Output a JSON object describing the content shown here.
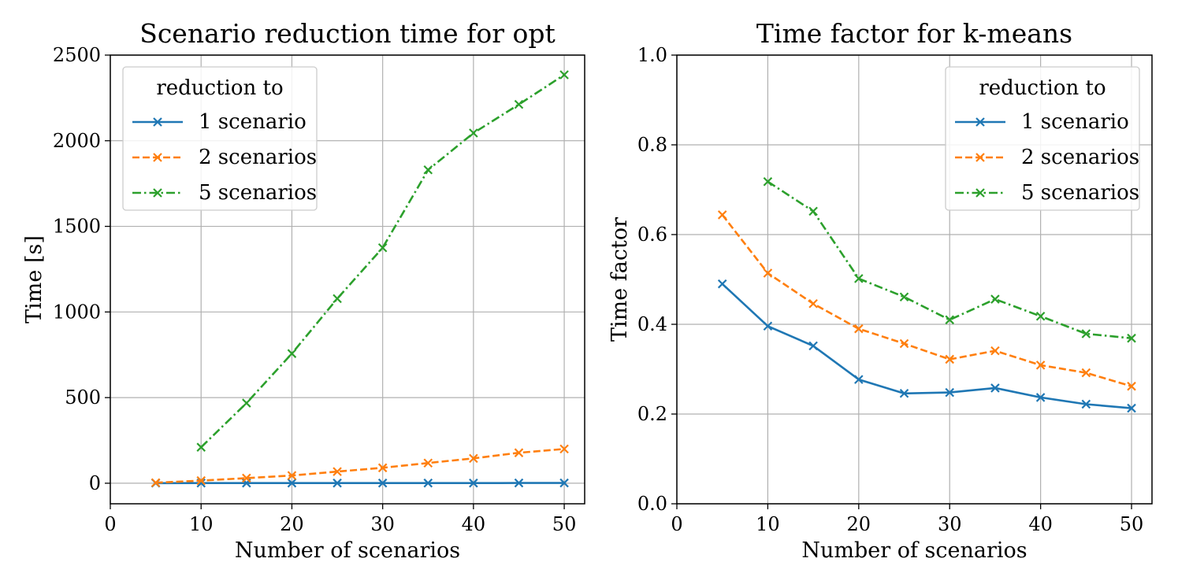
{
  "chart_data": [
    {
      "type": "line",
      "title": "Scenario reduction time for opt",
      "xlabel": "Number of scenarios",
      "ylabel": "Time [s]",
      "xlim": [
        0,
        52.25
      ],
      "ylim": [
        -120,
        2500
      ],
      "xticks": [
        0,
        10,
        20,
        30,
        40,
        50
      ],
      "yticks": [
        0,
        500,
        1000,
        1500,
        2000,
        2500
      ],
      "grid": true,
      "legend": {
        "title": "reduction to",
        "position": "top-left"
      },
      "series": [
        {
          "name": "1 scenario",
          "color": "#1f77b4",
          "linestyle": "solid",
          "marker": "x",
          "x": [
            5,
            10,
            15,
            20,
            25,
            30,
            35,
            40,
            45,
            50
          ],
          "y": [
            0.5,
            1,
            1,
            1,
            1,
            1,
            1,
            1,
            1.5,
            1.5
          ]
        },
        {
          "name": "2 scenarios",
          "color": "#ff7f0e",
          "linestyle": "dashed",
          "marker": "x",
          "x": [
            5,
            10,
            15,
            20,
            25,
            30,
            35,
            40,
            45,
            50
          ],
          "y": [
            3,
            15,
            30,
            45,
            68,
            90,
            118,
            145,
            178,
            200
          ]
        },
        {
          "name": "5 scenarios",
          "color": "#2ca02c",
          "linestyle": "dashdot",
          "marker": "x",
          "x": [
            10,
            15,
            20,
            25,
            30,
            35,
            40,
            45,
            50
          ],
          "y": [
            210,
            468,
            757,
            1078,
            1375,
            1830,
            2045,
            2212,
            2385
          ]
        }
      ]
    },
    {
      "type": "line",
      "title": "Time factor for k-means",
      "xlabel": "Number of scenarios",
      "ylabel": "Time factor",
      "xlim": [
        0,
        52.25
      ],
      "ylim": [
        0,
        1.0
      ],
      "xticks": [
        0,
        10,
        20,
        30,
        40,
        50
      ],
      "yticks": [
        0.0,
        0.2,
        0.4,
        0.6,
        0.8,
        1.0
      ],
      "ytick_labels": [
        "0.0",
        "0.2",
        "0.4",
        "0.6",
        "0.8",
        "1.0"
      ],
      "grid": true,
      "legend": {
        "title": "reduction to",
        "position": "top-right"
      },
      "series": [
        {
          "name": "1 scenario",
          "color": "#1f77b4",
          "linestyle": "solid",
          "marker": "x",
          "x": [
            5,
            10,
            15,
            20,
            25,
            30,
            35,
            40,
            45,
            50
          ],
          "y": [
            0.49,
            0.396,
            0.352,
            0.277,
            0.246,
            0.248,
            0.258,
            0.237,
            0.222,
            0.213
          ]
        },
        {
          "name": "2 scenarios",
          "color": "#ff7f0e",
          "linestyle": "dashed",
          "marker": "x",
          "x": [
            5,
            10,
            15,
            20,
            25,
            30,
            35,
            40,
            45,
            50
          ],
          "y": [
            0.644,
            0.514,
            0.446,
            0.39,
            0.357,
            0.322,
            0.341,
            0.309,
            0.292,
            0.262
          ]
        },
        {
          "name": "5 scenarios",
          "color": "#2ca02c",
          "linestyle": "dashdot",
          "marker": "x",
          "x": [
            10,
            15,
            20,
            25,
            30,
            35,
            40,
            45,
            50
          ],
          "y": [
            0.718,
            0.652,
            0.502,
            0.461,
            0.41,
            0.456,
            0.418,
            0.379,
            0.369
          ]
        }
      ]
    }
  ]
}
